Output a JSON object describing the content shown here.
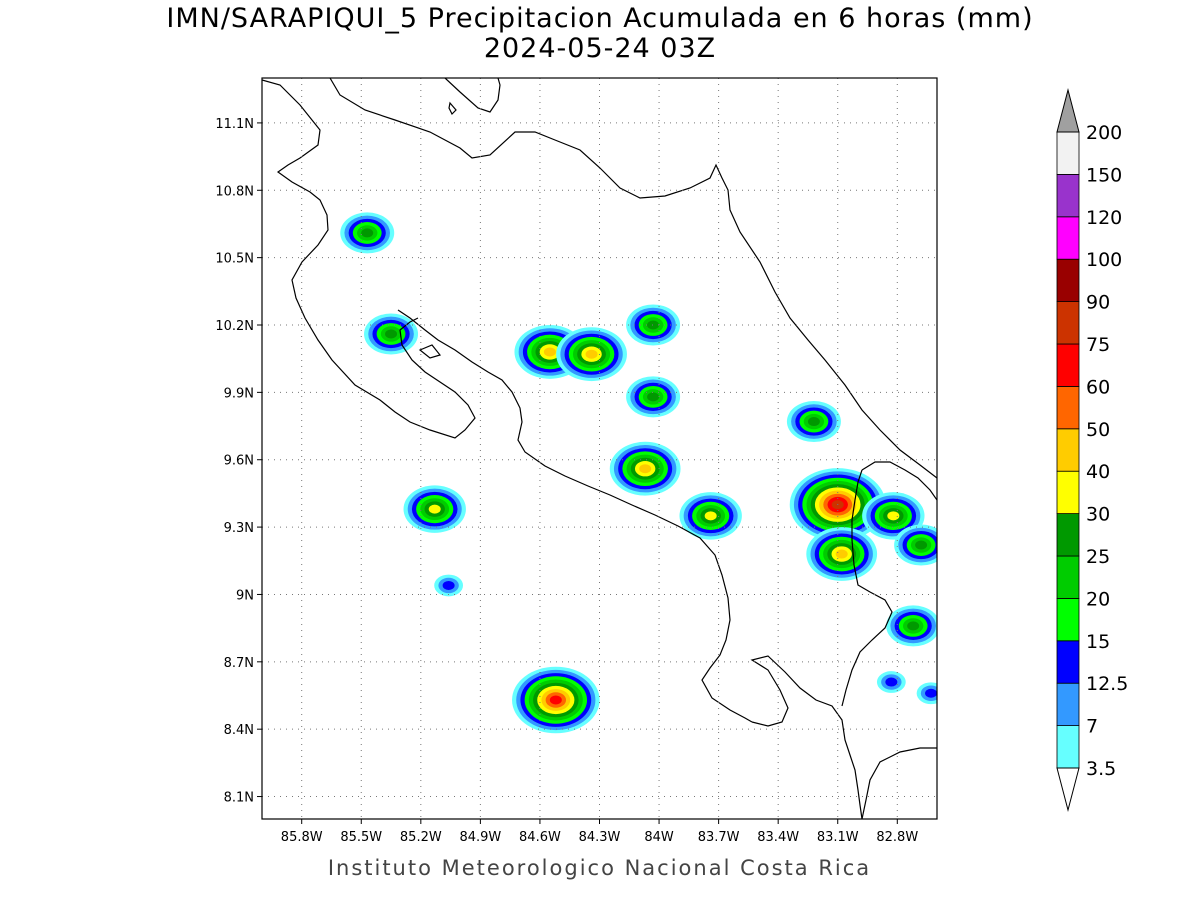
{
  "title": {
    "line1": "IMN/SARAPIQUI_5 Precipitacion Acumulada en 6 horas (mm)",
    "line2": "2024-05-24 03Z"
  },
  "footer": "Instituto Meteorologico Nacional Costa Rica",
  "axes": {
    "lon_min": -86.0,
    "lon_max": -82.6,
    "lat_min": 8.0,
    "lat_max": 11.3,
    "x_ticks": [
      {
        "value": -85.8,
        "label": "85.8W"
      },
      {
        "value": -85.5,
        "label": "85.5W"
      },
      {
        "value": -85.2,
        "label": "85.2W"
      },
      {
        "value": -84.9,
        "label": "84.9W"
      },
      {
        "value": -84.6,
        "label": "84.6W"
      },
      {
        "value": -84.3,
        "label": "84.3W"
      },
      {
        "value": -84.0,
        "label": "84W"
      },
      {
        "value": -83.7,
        "label": "83.7W"
      },
      {
        "value": -83.4,
        "label": "83.4W"
      },
      {
        "value": -83.1,
        "label": "83.1W"
      },
      {
        "value": -82.8,
        "label": "82.8W"
      }
    ],
    "y_ticks": [
      {
        "value": 11.1,
        "label": "11.1N"
      },
      {
        "value": 10.8,
        "label": "10.8N"
      },
      {
        "value": 10.5,
        "label": "10.5N"
      },
      {
        "value": 10.2,
        "label": "10.2N"
      },
      {
        "value": 9.9,
        "label": "9.9N"
      },
      {
        "value": 9.6,
        "label": "9.6N"
      },
      {
        "value": 9.3,
        "label": "9.3N"
      },
      {
        "value": 9.0,
        "label": "9N"
      },
      {
        "value": 8.7,
        "label": "8.7N"
      },
      {
        "value": 8.4,
        "label": "8.4N"
      },
      {
        "value": 8.1,
        "label": "8.1N"
      }
    ],
    "grid": true
  },
  "colorbar": {
    "levels": [
      {
        "label": "3.5",
        "color": "#66ffff"
      },
      {
        "label": "7",
        "color": "#3399ff"
      },
      {
        "label": "12.5",
        "color": "#0000ff"
      },
      {
        "label": "15",
        "color": "#00ff00"
      },
      {
        "label": "20",
        "color": "#00cc00"
      },
      {
        "label": "25",
        "color": "#009900"
      },
      {
        "label": "30",
        "color": "#ffff00"
      },
      {
        "label": "40",
        "color": "#ffcc00"
      },
      {
        "label": "50",
        "color": "#ff6600"
      },
      {
        "label": "60",
        "color": "#ff0000"
      },
      {
        "label": "75",
        "color": "#cc3300"
      },
      {
        "label": "90",
        "color": "#990000"
      },
      {
        "label": "100",
        "color": "#ff00ff"
      },
      {
        "label": "120",
        "color": "#9933cc"
      },
      {
        "label": "150",
        "color": "#f2f2f2"
      },
      {
        "label": "200",
        "color": ""
      }
    ],
    "top_arrow_color": "#a0a0a0",
    "bottom_arrow_color": "#ffffff"
  },
  "precip_cells": [
    {
      "lon": -85.47,
      "lat": 10.61,
      "max": 25
    },
    {
      "lon": -85.35,
      "lat": 10.16,
      "max": 25
    },
    {
      "lon": -85.13,
      "lat": 9.38,
      "max": 30
    },
    {
      "lon": -85.06,
      "lat": 9.04,
      "max": 12.5
    },
    {
      "lon": -84.55,
      "lat": 10.08,
      "max": 40
    },
    {
      "lon": -84.34,
      "lat": 10.07,
      "max": 40
    },
    {
      "lon": -84.03,
      "lat": 10.2,
      "max": 25
    },
    {
      "lon": -84.03,
      "lat": 9.88,
      "max": 25
    },
    {
      "lon": -84.07,
      "lat": 9.56,
      "max": 40
    },
    {
      "lon": -83.74,
      "lat": 9.35,
      "max": 30
    },
    {
      "lon": -83.22,
      "lat": 9.77,
      "max": 25
    },
    {
      "lon": -83.1,
      "lat": 9.4,
      "max": 75
    },
    {
      "lon": -83.08,
      "lat": 9.18,
      "max": 40
    },
    {
      "lon": -82.82,
      "lat": 9.35,
      "max": 30
    },
    {
      "lon": -82.68,
      "lat": 9.22,
      "max": 25
    },
    {
      "lon": -82.72,
      "lat": 8.86,
      "max": 25
    },
    {
      "lon": -84.52,
      "lat": 8.53,
      "max": 60
    },
    {
      "lon": -82.63,
      "lat": 8.56,
      "max": 12.5
    },
    {
      "lon": -82.83,
      "lat": 8.61,
      "max": 12.5
    }
  ]
}
